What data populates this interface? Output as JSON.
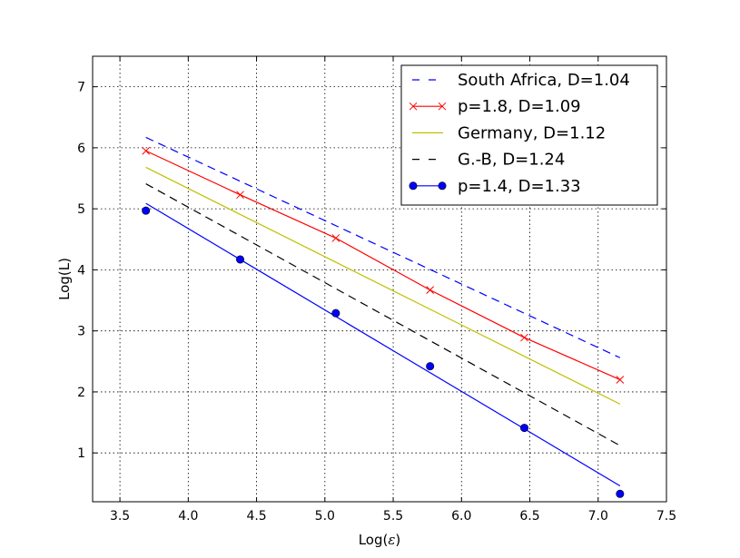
{
  "chart_data": {
    "type": "line",
    "title": "",
    "xlabel": "Log(",
    "xlabel_symbol": "ε",
    "xlabel_close": ")",
    "ylabel": "Log(L)",
    "xlim": [
      3.3,
      7.5
    ],
    "ylim": [
      0.2,
      7.5
    ],
    "xticks": [
      3.5,
      4.0,
      4.5,
      5.0,
      5.5,
      6.0,
      6.5,
      7.0,
      7.5
    ],
    "xtick_labels": [
      "3.5",
      "4.0",
      "4.5",
      "5.0",
      "5.5",
      "6.0",
      "6.5",
      "7.0",
      "7.5"
    ],
    "yticks": [
      1,
      2,
      3,
      4,
      5,
      6,
      7
    ],
    "ytick_labels": [
      "1",
      "2",
      "3",
      "4",
      "5",
      "6",
      "7"
    ],
    "grid": true,
    "legend_position": "top-right",
    "series": [
      {
        "name": "South Africa, D=1.04",
        "color": "#0000ff",
        "style": "dashed",
        "marker": "none",
        "x": [
          3.69,
          7.16
        ],
        "y": [
          6.17,
          2.56
        ]
      },
      {
        "name": "p=1.8, D=1.09",
        "color": "#ff0000",
        "style": "solid",
        "marker": "x",
        "x": [
          3.69,
          4.38,
          5.08,
          5.77,
          6.46,
          7.16
        ],
        "y": [
          5.95,
          5.23,
          4.52,
          3.67,
          2.89,
          2.2
        ]
      },
      {
        "name": "Germany, D=1.12",
        "color": "#bfbf00",
        "style": "solid",
        "marker": "none",
        "x": [
          3.69,
          7.16
        ],
        "y": [
          5.68,
          1.8
        ]
      },
      {
        "name": "G.-B, D=1.24",
        "color": "#000000",
        "style": "dashed",
        "marker": "none",
        "x": [
          3.69,
          7.16
        ],
        "y": [
          5.41,
          1.12
        ]
      },
      {
        "name": "p=1.4, D=1.33",
        "color": "#0000ff",
        "style": "solid",
        "marker": "circle",
        "x": [
          3.69,
          4.38,
          5.08,
          5.77,
          6.46,
          7.16
        ],
        "y": [
          4.97,
          4.17,
          3.29,
          2.42,
          1.41,
          0.33
        ],
        "fit_y": [
          5.09,
          0.46
        ]
      }
    ]
  }
}
